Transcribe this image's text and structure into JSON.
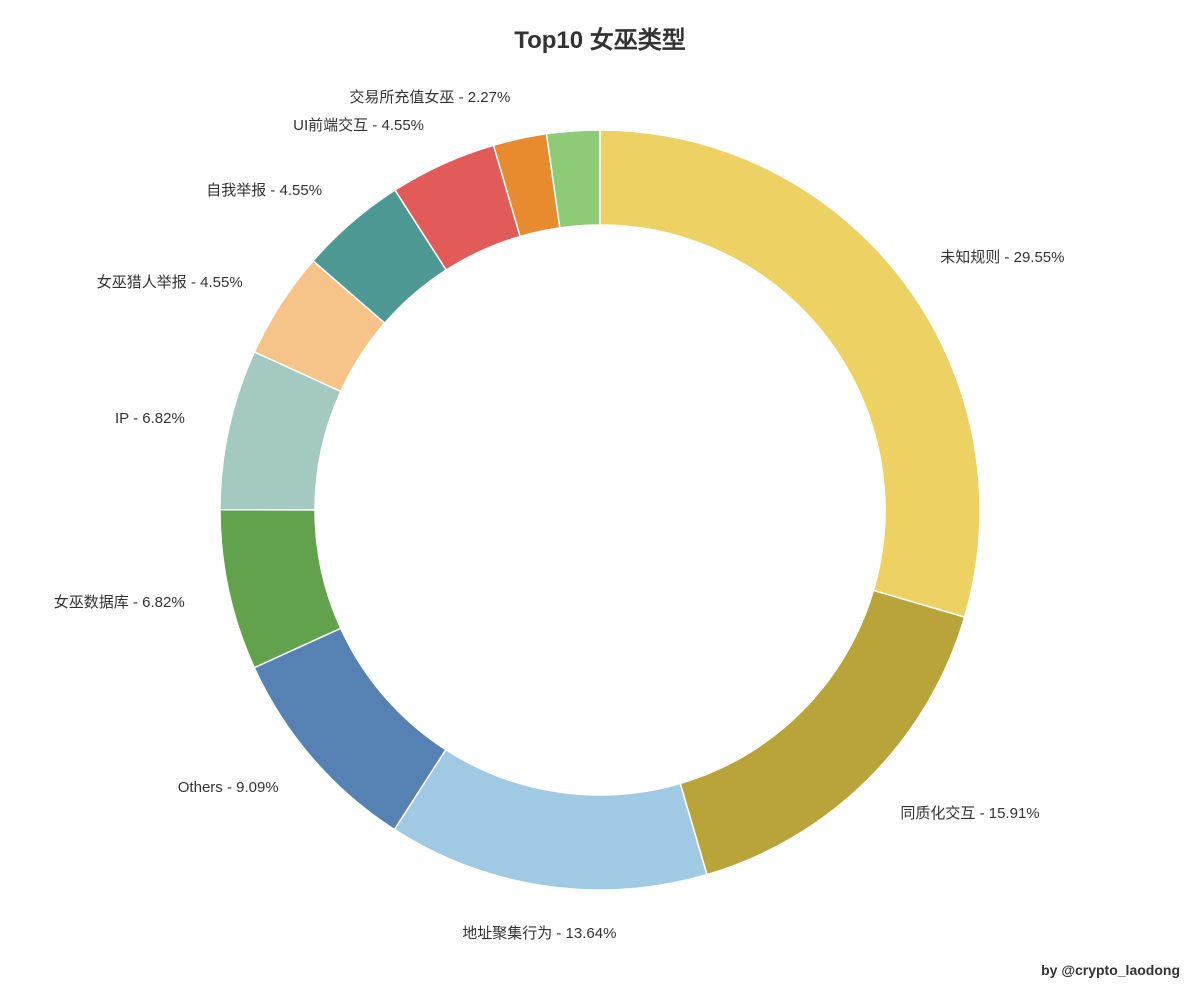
{
  "chart": {
    "type": "donut",
    "title": "Top10 女巫类型",
    "title_fontsize": 24,
    "title_color": "#333333",
    "background_color": "#ffffff",
    "credit": "by @crypto_laodong",
    "credit_fontsize": 14,
    "credit_color": "#333333",
    "outer_radius": 380,
    "inner_radius": 285,
    "label_fontsize": 15,
    "label_color": "#333333",
    "start_angle": 90,
    "slices": [
      {
        "label": "未知规则",
        "value": 29.55,
        "color": "#edd162",
        "display": "未知规则 - 29.55%"
      },
      {
        "label": "同质化交互",
        "value": 15.91,
        "color": "#b8a439",
        "display": "同质化交互 - 15.91%"
      },
      {
        "label": "地址聚集行为",
        "value": 13.64,
        "color": "#a0c9e4",
        "display": "地址聚集行为 - 13.64%"
      },
      {
        "label": "Others",
        "value": 9.09,
        "color": "#5682b3",
        "display": "Others - 9.09%"
      },
      {
        "label": "女巫数据库",
        "value": 6.82,
        "color": "#63a24d",
        "display": "女巫数据库 - 6.82%"
      },
      {
        "label": "IP",
        "value": 6.82,
        "color": "#a3c9c0",
        "display": "IP - 6.82%"
      },
      {
        "label": "女巫猎人举报",
        "value": 4.55,
        "color": "#f6c388",
        "display": "女巫猎人举报 - 4.55%"
      },
      {
        "label": "自我举报",
        "value": 4.55,
        "color": "#4e9994",
        "display": "自我举报 - 4.55%"
      },
      {
        "label": "UI前端交互",
        "value": 4.55,
        "color": "#e25b58",
        "display": "UI前端交互 - 4.55%"
      },
      {
        "label": "交易所充值女巫",
        "value": 2.27,
        "color": "#e88a2e",
        "display": "交易所充值女巫 - 2.27%"
      },
      {
        "label": "last",
        "value": 2.25,
        "color": "#8ecb77",
        "display": ""
      }
    ]
  }
}
